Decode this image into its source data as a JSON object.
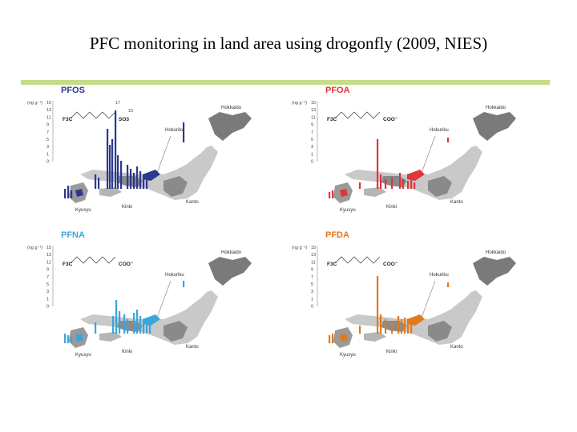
{
  "slide": {
    "title": "PFC monitoring in land area using drogonfly (2009, NIES)",
    "accent_color": "#c5dc8a"
  },
  "figure": {
    "unit_label": "(ng g⁻¹)",
    "y_ticks": [
      "15",
      "13",
      "11",
      "9",
      "7",
      "5",
      "3",
      "1",
      "0"
    ],
    "regions": {
      "hokkaido": "Hokkaido",
      "hokuriku": "Hokuriku",
      "kinki": "Kinki",
      "kanto": "Kanto",
      "kyusyu": "Kyusyu"
    },
    "panels": [
      {
        "id": "pfos",
        "label": "PFOS",
        "color": "#2b3990",
        "formula_tail": "SO3",
        "peak_labels": [
          "17",
          "15"
        ]
      },
      {
        "id": "pfoa",
        "label": "PFOA",
        "color": "#e0343a",
        "formula_tail": "COO⁻",
        "peak_labels": []
      },
      {
        "id": "pfna",
        "label": "PFNA",
        "color": "#3aa6dd",
        "formula_tail": "COO⁻",
        "peak_labels": []
      },
      {
        "id": "pfda",
        "label": "PFDA",
        "color": "#e07a1f",
        "formula_tail": "COO⁻",
        "peak_labels": []
      }
    ]
  }
}
